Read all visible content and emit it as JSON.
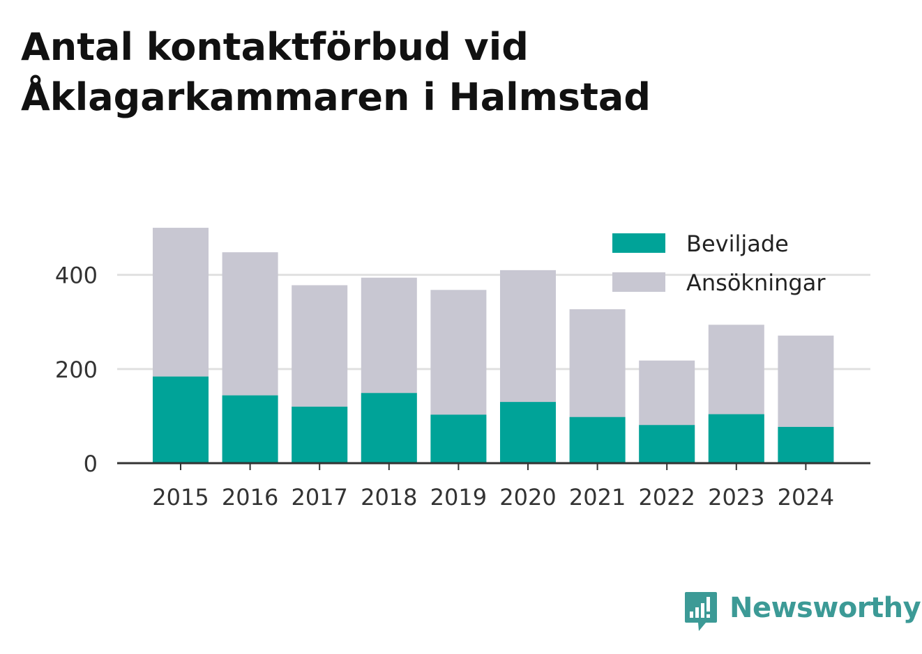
{
  "title_lines": [
    "Antal kontaktförbud vid",
    "Åklagarkammaren i Halmstad"
  ],
  "brand": {
    "name": "Newsworthy",
    "icon": "newsworthy-logo-icon",
    "color": "#3c9a96"
  },
  "chart_data": {
    "type": "bar",
    "stacking": "overlay",
    "title": "Antal kontaktförbud vid Åklagarkammaren i Halmstad",
    "xlabel": "",
    "ylabel": "",
    "categories": [
      "2015",
      "2016",
      "2017",
      "2018",
      "2019",
      "2020",
      "2021",
      "2022",
      "2023",
      "2024"
    ],
    "series": [
      {
        "name": "Beviljade",
        "color": "#00a398",
        "values": [
          184,
          144,
          120,
          149,
          103,
          130,
          98,
          81,
          104,
          77
        ]
      },
      {
        "name": "Ansökningar",
        "color": "#c8c7d2",
        "values": [
          500,
          448,
          378,
          394,
          368,
          410,
          327,
          218,
          294,
          271
        ]
      }
    ],
    "yticks": [
      0,
      200,
      400
    ],
    "ylim": [
      0,
      540
    ],
    "grid": true,
    "grid_color": "#e0e0e0",
    "legend": "top-right"
  }
}
